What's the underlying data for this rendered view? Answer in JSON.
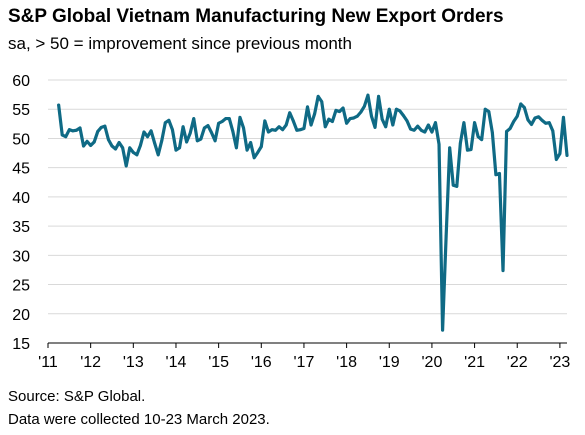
{
  "header": {
    "title": "S&P Global Vietnam Manufacturing New Export Orders",
    "subtitle": "sa, > 50 = improvement since previous month"
  },
  "footer": {
    "source": "Source: S&P Global.",
    "note": "Data were collected 10-23 March 2023."
  },
  "chart_data": {
    "type": "line",
    "title": "S&P Global Vietnam Manufacturing New Export Orders",
    "subtitle": "sa, > 50 = improvement since previous month",
    "xlabel": "",
    "ylabel": "",
    "ylim": [
      15,
      60
    ],
    "yticks": [
      15,
      20,
      25,
      30,
      35,
      40,
      45,
      50,
      55,
      60
    ],
    "xlim": [
      "2011-01",
      "2023-03"
    ],
    "xticks": [
      {
        "year": 2011,
        "label": "'11"
      },
      {
        "year": 2012,
        "label": "'12"
      },
      {
        "year": 2013,
        "label": "'13"
      },
      {
        "year": 2014,
        "label": "'14"
      },
      {
        "year": 2015,
        "label": "'15"
      },
      {
        "year": 2016,
        "label": "'16"
      },
      {
        "year": 2017,
        "label": "'17"
      },
      {
        "year": 2018,
        "label": "'18"
      },
      {
        "year": 2019,
        "label": "'19"
      },
      {
        "year": 2020,
        "label": "'20"
      },
      {
        "year": 2021,
        "label": "'21"
      },
      {
        "year": 2022,
        "label": "'22"
      },
      {
        "year": 2023,
        "label": "'23"
      }
    ],
    "grid": "horizontal",
    "series": [
      {
        "color": "#0f6a85",
        "x": [
          "2011-04",
          "2011-05",
          "2011-06",
          "2011-07",
          "2011-08",
          "2011-09",
          "2011-10",
          "2011-11",
          "2011-12",
          "2012-01",
          "2012-02",
          "2012-03",
          "2012-04",
          "2012-05",
          "2012-06",
          "2012-07",
          "2012-08",
          "2012-09",
          "2012-10",
          "2012-11",
          "2012-12",
          "2013-01",
          "2013-02",
          "2013-03",
          "2013-04",
          "2013-05",
          "2013-06",
          "2013-07",
          "2013-08",
          "2013-09",
          "2013-10",
          "2013-11",
          "2013-12",
          "2014-01",
          "2014-02",
          "2014-03",
          "2014-04",
          "2014-05",
          "2014-06",
          "2014-07",
          "2014-08",
          "2014-09",
          "2014-10",
          "2014-11",
          "2014-12",
          "2015-01",
          "2015-02",
          "2015-03",
          "2015-04",
          "2015-05",
          "2015-06",
          "2015-07",
          "2015-08",
          "2015-09",
          "2015-10",
          "2015-11",
          "2015-12",
          "2016-01",
          "2016-02",
          "2016-03",
          "2016-04",
          "2016-05",
          "2016-06",
          "2016-07",
          "2016-08",
          "2016-09",
          "2016-10",
          "2016-11",
          "2016-12",
          "2017-01",
          "2017-02",
          "2017-03",
          "2017-04",
          "2017-05",
          "2017-06",
          "2017-07",
          "2017-08",
          "2017-09",
          "2017-10",
          "2017-11",
          "2017-12",
          "2018-01",
          "2018-02",
          "2018-03",
          "2018-04",
          "2018-05",
          "2018-06",
          "2018-07",
          "2018-08",
          "2018-09",
          "2018-10",
          "2018-11",
          "2018-12",
          "2019-01",
          "2019-02",
          "2019-03",
          "2019-04",
          "2019-05",
          "2019-06",
          "2019-07",
          "2019-08",
          "2019-09",
          "2019-10",
          "2019-11",
          "2019-12",
          "2020-01",
          "2020-02",
          "2020-03",
          "2020-04",
          "2020-05",
          "2020-06",
          "2020-07",
          "2020-08",
          "2020-09",
          "2020-10",
          "2020-11",
          "2020-12",
          "2021-01",
          "2021-02",
          "2021-03",
          "2021-04",
          "2021-05",
          "2021-06",
          "2021-07",
          "2021-08",
          "2021-09",
          "2021-10",
          "2021-11",
          "2021-12",
          "2022-01",
          "2022-02",
          "2022-03",
          "2022-04",
          "2022-05",
          "2022-06",
          "2022-07",
          "2022-08",
          "2022-09",
          "2022-10",
          "2022-11",
          "2022-12",
          "2023-01",
          "2023-02",
          "2023-03"
        ],
        "values": [
          55.7,
          50.6,
          50.3,
          51.5,
          51.3,
          51.4,
          51.8,
          48.7,
          49.5,
          48.8,
          49.4,
          51.2,
          51.9,
          52.1,
          49.8,
          48.7,
          48.2,
          49.3,
          48.4,
          45.3,
          48.4,
          47.6,
          47.2,
          48.8,
          51.1,
          50.3,
          51.3,
          49.2,
          47.2,
          49.6,
          52.7,
          53.1,
          51.5,
          48.0,
          48.4,
          52.0,
          49.4,
          50.9,
          53.4,
          49.6,
          49.9,
          51.8,
          52.2,
          51.0,
          49.6,
          52.6,
          52.9,
          53.4,
          53.4,
          51.2,
          48.4,
          53.6,
          51.8,
          48.0,
          49.3,
          46.7,
          47.6,
          48.6,
          53.0,
          51.1,
          51.5,
          51.4,
          52.0,
          51.5,
          52.3,
          54.4,
          53.0,
          51.4,
          51.5,
          51.7,
          55.4,
          52.3,
          54.2,
          57.2,
          56.3,
          52.0,
          53.3,
          52.9,
          54.8,
          54.6,
          55.2,
          52.6,
          53.4,
          53.5,
          53.8,
          54.5,
          55.5,
          57.4,
          53.8,
          51.9,
          57.2,
          53.3,
          52.0,
          55.0,
          52.3,
          55.0,
          54.7,
          53.9,
          53.0,
          51.6,
          51.4,
          52.1,
          51.4,
          51.1,
          52.3,
          51.1,
          52.7,
          49.0,
          17.2,
          33.3,
          48.4,
          42.0,
          41.8,
          49.2,
          52.7,
          48.0,
          48.1,
          52.7,
          50.3,
          49.8,
          55.0,
          54.6,
          51.0,
          43.8,
          44.0,
          27.4,
          51.2,
          51.7,
          52.9,
          53.8,
          55.9,
          55.3,
          53.2,
          52.4,
          53.5,
          53.7,
          53.1,
          52.6,
          52.7,
          51.3,
          46.4,
          47.4,
          53.6,
          47.1
        ]
      }
    ]
  }
}
